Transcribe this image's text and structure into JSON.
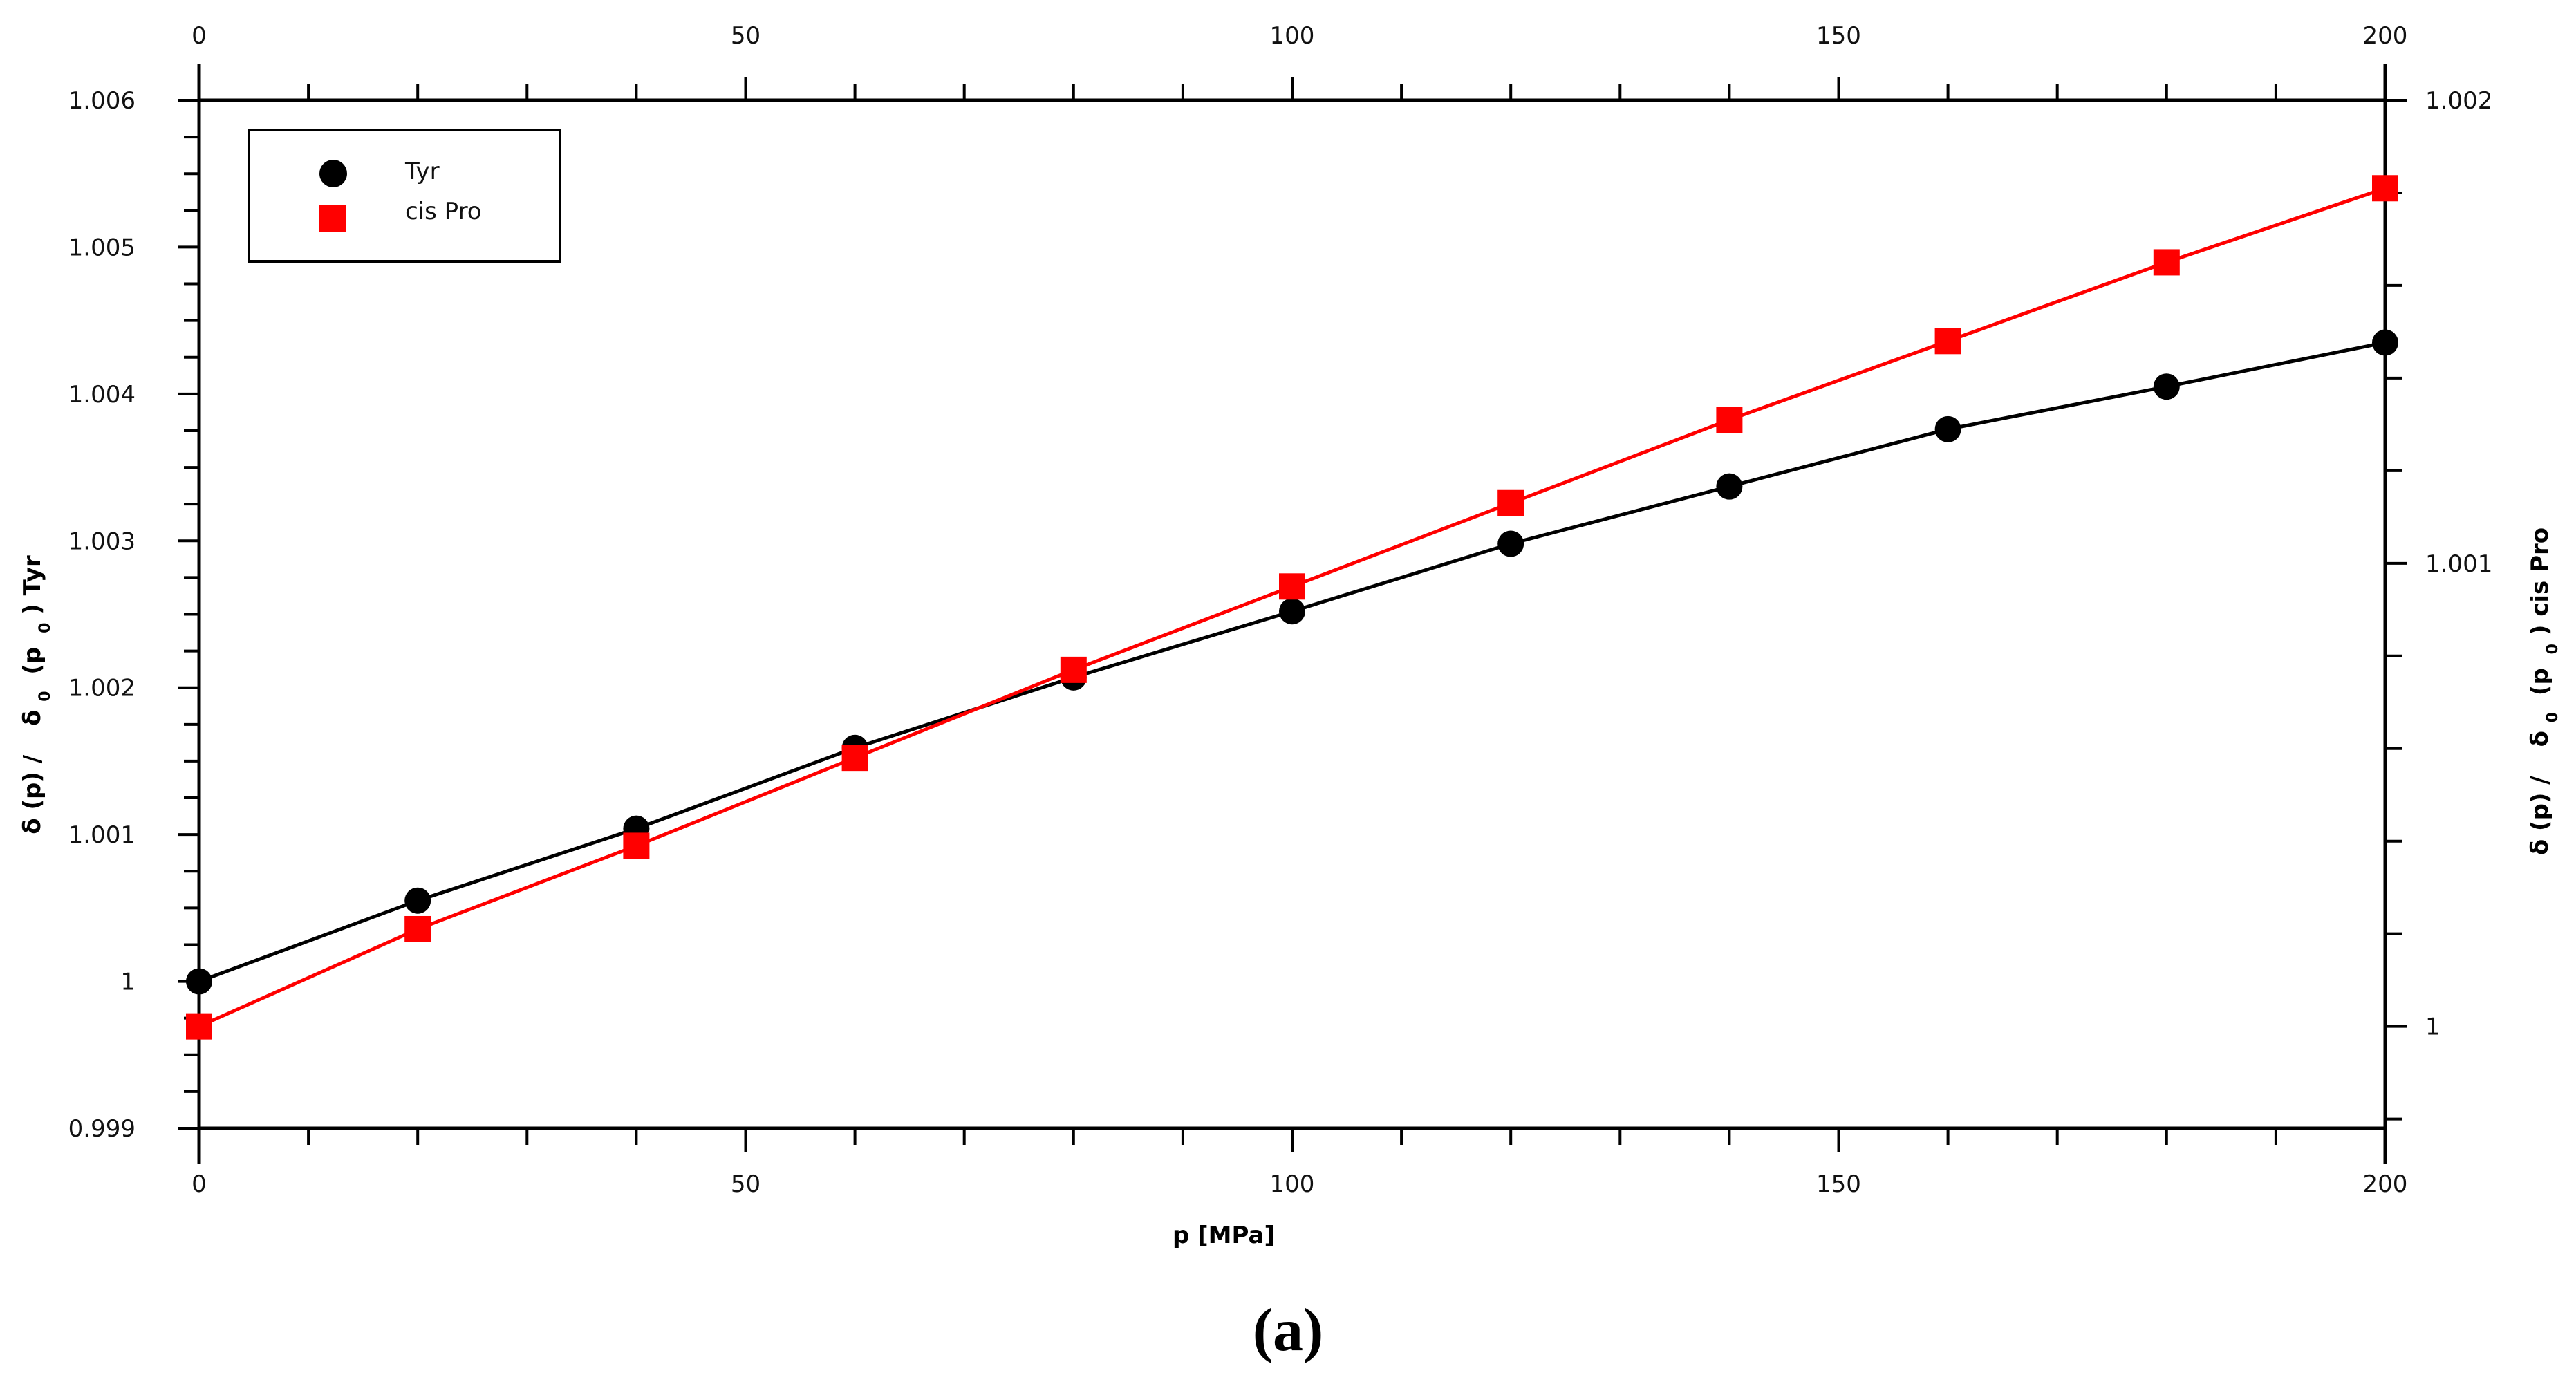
{
  "chart_data": {
    "type": "scatter",
    "caption": "(a)",
    "xlabel": "p [MPa]",
    "ylabel_left": "δ (p) / δ₀ (p₀) Tyr",
    "ylabel_left_parts": [
      "δ (p) /",
      "δ",
      "0",
      "(p",
      "0",
      ") Tyr"
    ],
    "ylabel_right": "δ (p) / δ₀ (p₀) cis Pro",
    "ylabel_right_parts": [
      "δ (p) /",
      "δ",
      "0",
      "(p",
      "0",
      ") cis Pro"
    ],
    "xlim": [
      0,
      200
    ],
    "ylim_left": [
      0.999,
      1.006
    ],
    "ylim_right": [
      0.99978,
      1.002
    ],
    "x_ticks": [
      0,
      50,
      100,
      150,
      200
    ],
    "x_tick_labels": [
      "0",
      "50",
      "100",
      "150",
      "200"
    ],
    "y_left_ticks": [
      0.999,
      1,
      1.001,
      1.002,
      1.003,
      1.004,
      1.005,
      1.006
    ],
    "y_left_tick_labels": [
      "0.999",
      "1",
      "1.001",
      "1.002",
      "1.003",
      "1.004",
      "1.005",
      "1.006"
    ],
    "y_right_ticks": [
      1,
      1.001,
      1.002
    ],
    "y_right_tick_labels": [
      "1",
      "1.001",
      "1.002"
    ],
    "grid": false,
    "legend_position": "top-left",
    "series": [
      {
        "name": "Tyr",
        "axis": "left",
        "marker": "circle",
        "color": "#000000",
        "x": [
          0,
          20,
          40,
          60,
          80,
          100,
          120,
          140,
          160,
          180,
          200
        ],
        "y": [
          1.0,
          1.00055,
          1.00104,
          1.00159,
          1.00207,
          1.00252,
          1.00298,
          1.00337,
          1.00376,
          1.00405,
          1.00435
        ]
      },
      {
        "name": "cis Pro",
        "axis": "right",
        "marker": "square",
        "color": "#ff0000",
        "x": [
          0,
          20,
          40,
          60,
          80,
          100,
          120,
          140,
          160,
          180,
          200
        ],
        "y": [
          1.0,
          1.00021,
          1.00039,
          1.00058,
          1.00077,
          1.00095,
          1.00113,
          1.00131,
          1.00148,
          1.00165,
          1.00181
        ]
      }
    ]
  }
}
